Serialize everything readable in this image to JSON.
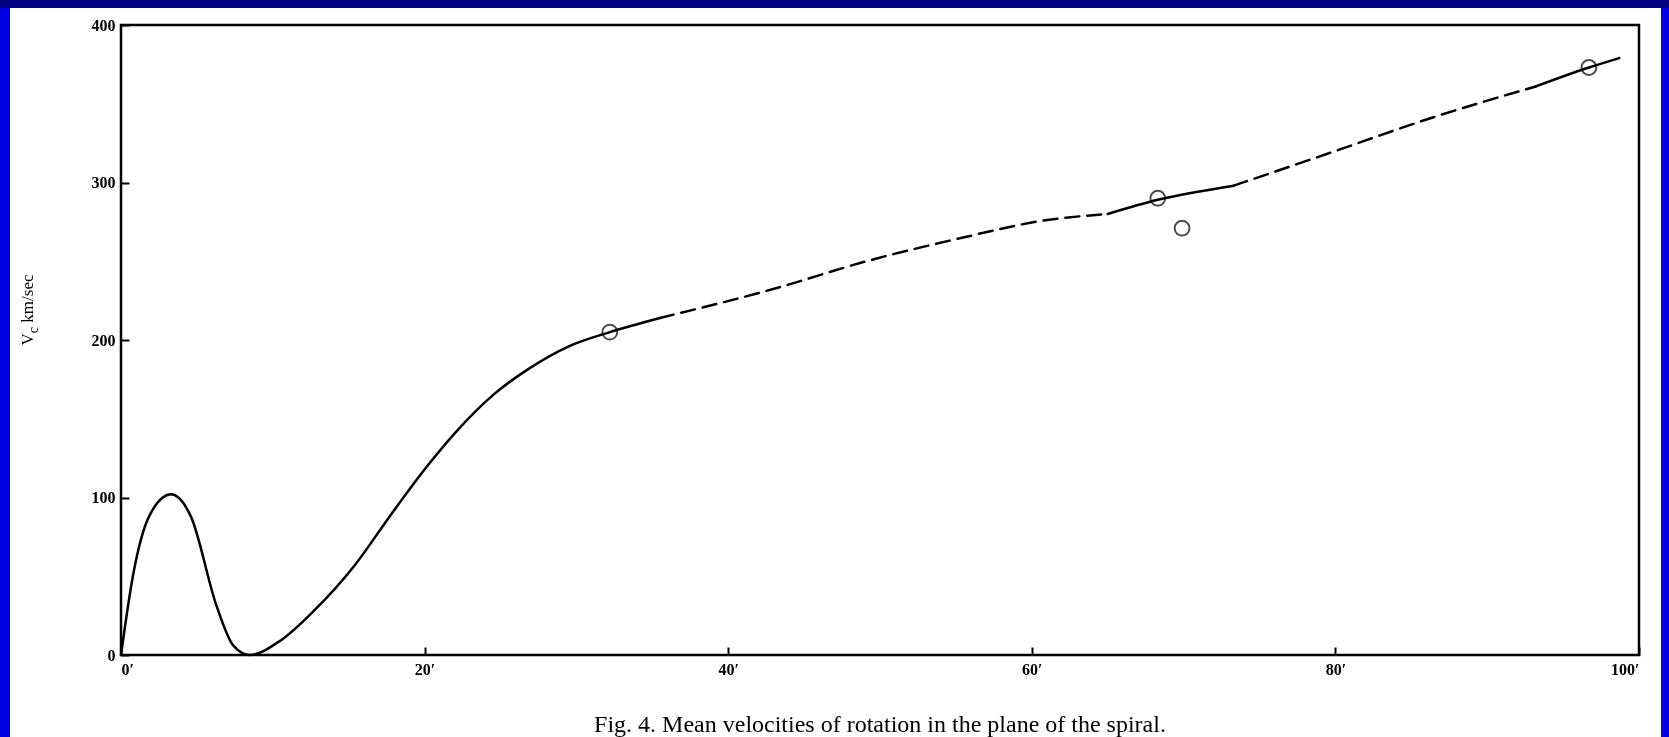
{
  "chart_data": {
    "type": "line",
    "title": "Fig. 4. Mean velocities of rotation in the plane of the spiral.",
    "ylabel": "V$_{c}$ km/sec",
    "xlim": [
      0,
      100
    ],
    "xticks": [
      {
        "value": 0,
        "label": "0′"
      },
      {
        "value": 20,
        "label": "20′"
      },
      {
        "value": 40,
        "label": "40′"
      },
      {
        "value": 60,
        "label": "60′"
      },
      {
        "value": 80,
        "label": "80′"
      },
      {
        "value": 100,
        "label": "100′"
      }
    ],
    "ylim": [
      0,
      400
    ],
    "yticks": [
      0,
      100,
      200,
      300,
      400
    ],
    "grid": false,
    "series": [
      {
        "line_style": "solid",
        "color": "#000000",
        "x": [
          0,
          0.8,
          1.85,
          3.3,
          4.6,
          6.3,
          7.4,
          8.5,
          10.4,
          12.7,
          15.4,
          17.7,
          20.1,
          22.1,
          24.5,
          26.9,
          29.5,
          32.2,
          35.5
        ],
        "values": [
          0,
          51,
          88,
          102,
          88,
          31,
          6,
          0,
          8.5,
          28,
          57,
          88,
          119,
          142,
          165,
          182,
          196,
          205,
          214
        ]
      },
      {
        "line_style": "dashed",
        "color": "#000000",
        "x": [
          35.5,
          43.2,
          49.1,
          55,
          60.9,
          65
        ],
        "values": [
          214,
          233,
          250,
          264,
          276,
          280
        ]
      },
      {
        "line_style": "solid",
        "color": "#000000",
        "x": [
          65,
          68.3,
          73.3
        ],
        "values": [
          280,
          289,
          298
        ]
      },
      {
        "line_style": "dashed",
        "color": "#000000",
        "x": [
          73.3,
          79.7,
          86,
          93.2
        ],
        "values": [
          298,
          319,
          340,
          361
        ]
      },
      {
        "line_style": "solid",
        "color": "#000000",
        "x": [
          93.2,
          96.7,
          98.7
        ],
        "values": [
          361,
          373,
          379
        ]
      },
      {
        "type": "scatter",
        "marker": "circle",
        "color": "#000000",
        "x": [
          32.2,
          68.3,
          69.9,
          96.7
        ],
        "values": [
          205,
          290,
          271,
          373
        ]
      }
    ]
  }
}
